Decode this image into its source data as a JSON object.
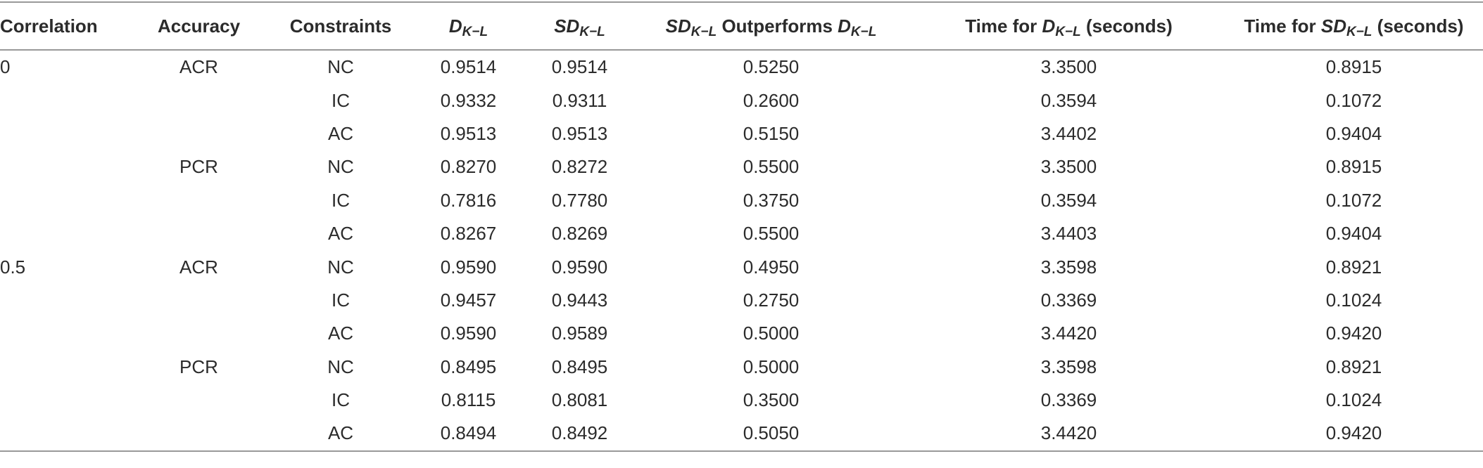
{
  "table": {
    "header": [
      [
        {
          "text": "Correlation"
        }
      ],
      [
        {
          "text": "Accuracy"
        }
      ],
      [
        {
          "text": "Constraints"
        }
      ],
      [
        {
          "math": "D",
          "sub": "K−L"
        }
      ],
      [
        {
          "math": "SD",
          "sub": "K−L"
        }
      ],
      [
        {
          "math": "SD",
          "sub": "K−L"
        },
        {
          "text": "Outperforms"
        },
        {
          "math": "D",
          "sub": "K−L"
        }
      ],
      [
        {
          "text": "Time for"
        },
        {
          "math": "D",
          "sub": "K−L"
        },
        {
          "text": "(seconds)"
        }
      ],
      [
        {
          "text": "Time for"
        },
        {
          "math": "SD",
          "sub": "K−L"
        },
        {
          "text": "(seconds)"
        }
      ]
    ],
    "rows": [
      [
        "0",
        "ACR",
        "NC",
        "0.9514",
        "0.9514",
        "0.5250",
        "3.3500",
        "0.8915"
      ],
      [
        null,
        null,
        "IC",
        "0.9332",
        "0.9311",
        "0.2600",
        "0.3594",
        "0.1072"
      ],
      [
        null,
        null,
        "AC",
        "0.9513",
        "0.9513",
        "0.5150",
        "3.4402",
        "0.9404"
      ],
      [
        null,
        "PCR",
        "NC",
        "0.8270",
        "0.8272",
        "0.5500",
        "3.3500",
        "0.8915"
      ],
      [
        null,
        null,
        "IC",
        "0.7816",
        "0.7780",
        "0.3750",
        "0.3594",
        "0.1072"
      ],
      [
        null,
        null,
        "AC",
        "0.8267",
        "0.8269",
        "0.5500",
        "3.4403",
        "0.9404"
      ],
      [
        "0.5",
        "ACR",
        "NC",
        "0.9590",
        "0.9590",
        "0.4950",
        "3.3598",
        "0.8921"
      ],
      [
        null,
        null,
        "IC",
        "0.9457",
        "0.9443",
        "0.2750",
        "0.3369",
        "0.1024"
      ],
      [
        null,
        null,
        "AC",
        "0.9590",
        "0.9589",
        "0.5000",
        "3.4420",
        "0.9420"
      ],
      [
        null,
        "PCR",
        "NC",
        "0.8495",
        "0.8495",
        "0.5000",
        "3.3598",
        "0.8921"
      ],
      [
        null,
        null,
        "IC",
        "0.8115",
        "0.8081",
        "0.3500",
        "0.3369",
        "0.1024"
      ],
      [
        null,
        null,
        "AC",
        "0.8494",
        "0.8492",
        "0.5050",
        "3.4420",
        "0.9420"
      ]
    ]
  }
}
